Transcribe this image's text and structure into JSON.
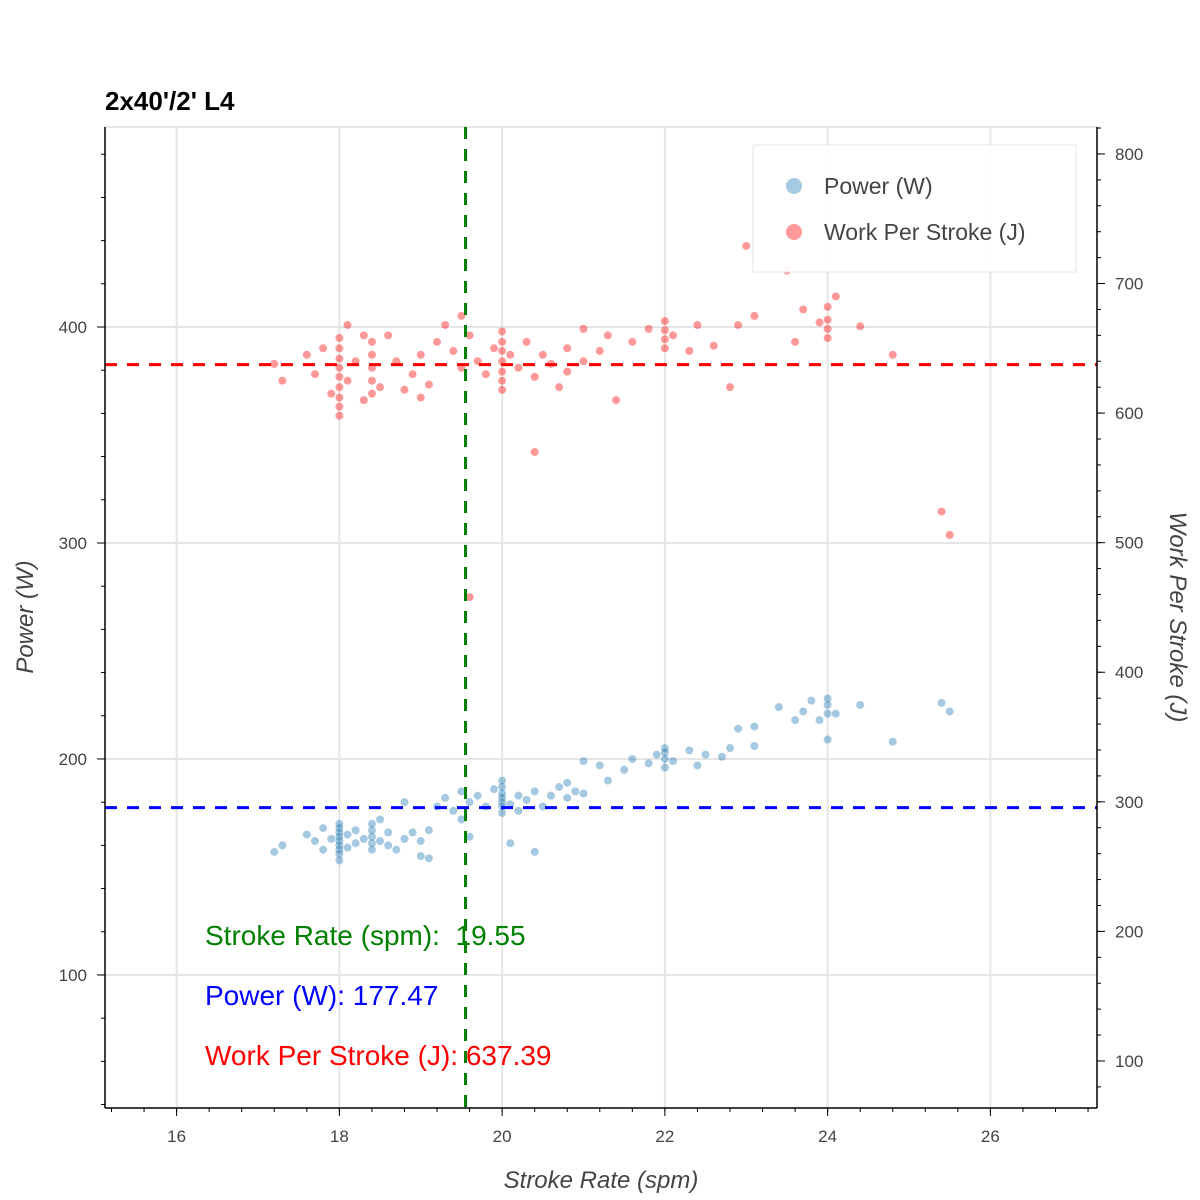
{
  "chart_data": {
    "type": "scatter",
    "title": "2x40'/2' L4",
    "xlabel": "Stroke Rate (spm)",
    "ylabel": "Power (W)",
    "y2label": "Work Per Stroke (J)",
    "xlim": [
      15.12,
      27.31
    ],
    "ylim": [
      38.4,
      492.6
    ],
    "y2lim": [
      63.7,
      820.8
    ],
    "xticks": [
      16,
      18,
      20,
      22,
      24,
      26
    ],
    "yticks": [
      100,
      200,
      300,
      400
    ],
    "y2ticks": [
      100,
      200,
      300,
      400,
      500,
      600,
      700,
      800
    ],
    "grid": true,
    "legend_position": "top-right",
    "series": [
      {
        "name": "Power (W)",
        "axis": "left",
        "color": "#1f77b4",
        "points": [
          [
            17.2,
            157
          ],
          [
            17.3,
            160
          ],
          [
            17.6,
            165
          ],
          [
            17.7,
            162
          ],
          [
            17.8,
            168
          ],
          [
            17.8,
            158
          ],
          [
            17.9,
            163
          ],
          [
            18,
            153
          ],
          [
            18,
            156
          ],
          [
            18,
            158
          ],
          [
            18,
            160
          ],
          [
            18,
            162
          ],
          [
            18,
            164
          ],
          [
            18,
            166
          ],
          [
            18,
            168
          ],
          [
            18,
            170
          ],
          [
            18.1,
            159
          ],
          [
            18.1,
            165
          ],
          [
            18.2,
            161
          ],
          [
            18.2,
            167
          ],
          [
            18.3,
            163
          ],
          [
            18.4,
            158
          ],
          [
            18.4,
            161
          ],
          [
            18.4,
            164
          ],
          [
            18.4,
            167
          ],
          [
            18.4,
            170
          ],
          [
            18.5,
            162
          ],
          [
            18.5,
            172
          ],
          [
            18.6,
            160
          ],
          [
            18.6,
            166
          ],
          [
            18.7,
            158
          ],
          [
            18.8,
            163
          ],
          [
            18.8,
            180
          ],
          [
            18.9,
            166
          ],
          [
            19,
            155
          ],
          [
            19,
            162
          ],
          [
            19.1,
            154
          ],
          [
            19.1,
            167
          ],
          [
            19.2,
            178
          ],
          [
            19.3,
            182
          ],
          [
            19.4,
            176
          ],
          [
            19.5,
            185
          ],
          [
            19.5,
            172
          ],
          [
            19.6,
            180
          ],
          [
            19.6,
            164
          ],
          [
            19.7,
            183
          ],
          [
            19.8,
            178
          ],
          [
            19.9,
            186
          ],
          [
            20,
            175
          ],
          [
            20,
            178
          ],
          [
            20,
            180
          ],
          [
            20,
            182
          ],
          [
            20,
            184
          ],
          [
            20,
            187
          ],
          [
            20,
            190
          ],
          [
            20.1,
            179
          ],
          [
            20.1,
            161
          ],
          [
            20.2,
            183
          ],
          [
            20.2,
            176
          ],
          [
            20.3,
            181
          ],
          [
            20.4,
            185
          ],
          [
            20.4,
            157
          ],
          [
            20.5,
            178
          ],
          [
            20.6,
            183
          ],
          [
            20.7,
            187
          ],
          [
            20.8,
            182
          ],
          [
            20.8,
            189
          ],
          [
            20.9,
            185
          ],
          [
            21,
            184
          ],
          [
            21,
            199
          ],
          [
            21.2,
            197
          ],
          [
            21.3,
            190
          ],
          [
            21.5,
            195
          ],
          [
            21.6,
            200
          ],
          [
            21.8,
            198
          ],
          [
            21.9,
            202
          ],
          [
            22,
            196
          ],
          [
            22,
            200
          ],
          [
            22,
            203
          ],
          [
            22,
            205
          ],
          [
            22.1,
            199
          ],
          [
            22.3,
            204
          ],
          [
            22.4,
            197
          ],
          [
            22.5,
            202
          ],
          [
            22.7,
            201
          ],
          [
            22.8,
            205
          ],
          [
            22.9,
            214
          ],
          [
            23.1,
            215
          ],
          [
            23.1,
            206
          ],
          [
            23.4,
            224
          ],
          [
            23.6,
            218
          ],
          [
            23.7,
            222
          ],
          [
            23.8,
            227
          ],
          [
            23.9,
            218
          ],
          [
            24,
            209
          ],
          [
            24,
            221
          ],
          [
            24,
            225
          ],
          [
            24,
            228
          ],
          [
            24.1,
            221
          ],
          [
            24.4,
            225
          ],
          [
            24.8,
            208
          ],
          [
            25.4,
            226
          ],
          [
            25.5,
            222
          ]
        ]
      },
      {
        "name": "Work Per Stroke (J)",
        "axis": "right",
        "color": "#ff0000",
        "points": [
          [
            17.2,
            638
          ],
          [
            17.3,
            625
          ],
          [
            17.6,
            645
          ],
          [
            17.7,
            630
          ],
          [
            17.8,
            650
          ],
          [
            17.9,
            615
          ],
          [
            18,
            598
          ],
          [
            18,
            605
          ],
          [
            18,
            612
          ],
          [
            18,
            620
          ],
          [
            18,
            628
          ],
          [
            18,
            635
          ],
          [
            18,
            642
          ],
          [
            18,
            650
          ],
          [
            18,
            658
          ],
          [
            18.1,
            625
          ],
          [
            18.1,
            668
          ],
          [
            18.2,
            640
          ],
          [
            18.3,
            610
          ],
          [
            18.3,
            660
          ],
          [
            18.4,
            615
          ],
          [
            18.4,
            625
          ],
          [
            18.4,
            635
          ],
          [
            18.4,
            645
          ],
          [
            18.4,
            655
          ],
          [
            18.5,
            620
          ],
          [
            18.6,
            660
          ],
          [
            18.7,
            640
          ],
          [
            18.8,
            618
          ],
          [
            18.9,
            630
          ],
          [
            19,
            612
          ],
          [
            19,
            645
          ],
          [
            19.1,
            622
          ],
          [
            19.2,
            655
          ],
          [
            19.3,
            668
          ],
          [
            19.4,
            648
          ],
          [
            19.5,
            635
          ],
          [
            19.5,
            675
          ],
          [
            19.6,
            458
          ],
          [
            19.6,
            660
          ],
          [
            19.7,
            640
          ],
          [
            19.8,
            630
          ],
          [
            19.9,
            650
          ],
          [
            20,
            618
          ],
          [
            20,
            625
          ],
          [
            20,
            632
          ],
          [
            20,
            640
          ],
          [
            20,
            648
          ],
          [
            20,
            655
          ],
          [
            20,
            663
          ],
          [
            20.1,
            645
          ],
          [
            20.2,
            635
          ],
          [
            20.3,
            655
          ],
          [
            20.4,
            570
          ],
          [
            20.4,
            628
          ],
          [
            20.5,
            645
          ],
          [
            20.6,
            638
          ],
          [
            20.7,
            620
          ],
          [
            20.8,
            632
          ],
          [
            20.8,
            650
          ],
          [
            21,
            640
          ],
          [
            21,
            665
          ],
          [
            21.2,
            648
          ],
          [
            21.3,
            660
          ],
          [
            21.4,
            610
          ],
          [
            21.6,
            655
          ],
          [
            21.8,
            665
          ],
          [
            22,
            650
          ],
          [
            22,
            657
          ],
          [
            22,
            664
          ],
          [
            22,
            671
          ],
          [
            22.1,
            660
          ],
          [
            22.3,
            648
          ],
          [
            22.4,
            668
          ],
          [
            22.6,
            652
          ],
          [
            22.8,
            620
          ],
          [
            22.9,
            668
          ],
          [
            23,
            729
          ],
          [
            23.1,
            675
          ],
          [
            23.5,
            710
          ],
          [
            23.6,
            655
          ],
          [
            23.7,
            680
          ],
          [
            23.9,
            670
          ],
          [
            24,
            658
          ],
          [
            24,
            665
          ],
          [
            24,
            672
          ],
          [
            24,
            682
          ],
          [
            24.1,
            690
          ],
          [
            24.4,
            667
          ],
          [
            24.8,
            645
          ],
          [
            25.4,
            524
          ],
          [
            25.5,
            506
          ]
        ]
      }
    ],
    "reference_lines": [
      {
        "orientation": "vertical",
        "axis": "x",
        "value": 19.55,
        "color": "#008000"
      },
      {
        "orientation": "horizontal",
        "axis": "left",
        "value": 177.47,
        "color": "#0000ff"
      },
      {
        "orientation": "horizontal",
        "axis": "right",
        "value": 637.39,
        "color": "#ff0000"
      }
    ],
    "annotations": [
      {
        "text": "Stroke Rate (spm):  19.55",
        "color": "#008000"
      },
      {
        "text": "Power (W): 177.47",
        "color": "#0000ff"
      },
      {
        "text": "Work Per Stroke (J): 637.39",
        "color": "#ff0000"
      }
    ]
  }
}
